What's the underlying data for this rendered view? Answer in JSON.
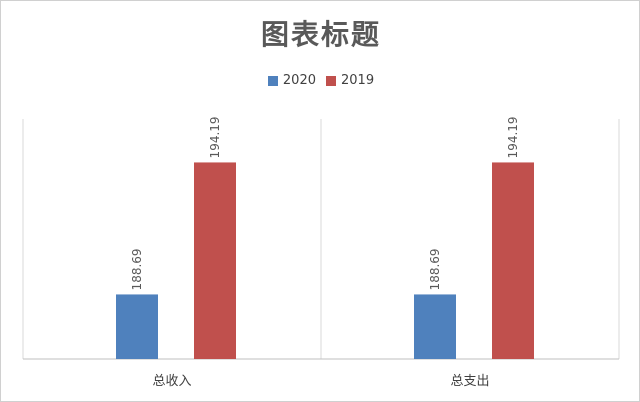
{
  "chart_data": {
    "type": "bar",
    "title": "图表标题",
    "categories": [
      "总收入",
      "总支出"
    ],
    "series": [
      {
        "name": "2020",
        "values": [
          188.69,
          188.69
        ],
        "color": "#4f81bd"
      },
      {
        "name": "2019",
        "values": [
          194.19,
          194.19
        ],
        "color": "#c0504d"
      }
    ],
    "ylim": [
      186,
      196
    ],
    "grid": false,
    "legend": "top-center",
    "data_labels": true
  }
}
